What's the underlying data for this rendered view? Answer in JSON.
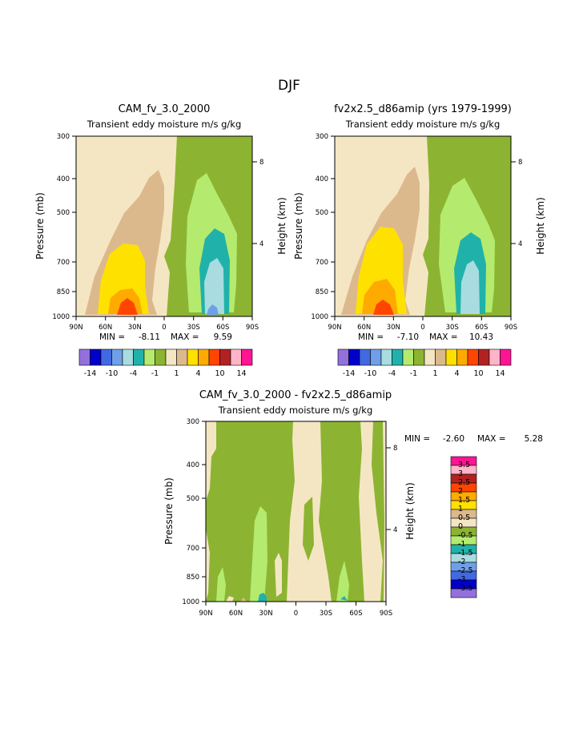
{
  "page_title": "DJF",
  "colors": {
    "levels_main": [
      "#9370DB",
      "#0000CD",
      "#4169E1",
      "#6F9FE8",
      "#A8DCE0",
      "#20B2AA",
      "#B4EB6E",
      "#8CB432",
      "#F5E6C3",
      "#DCB98C",
      "#FFE100",
      "#FFAA00",
      "#FF4500",
      "#B22222",
      "#FFB4C8",
      "#FF1493"
    ],
    "levels_diff": [
      "#9370DB",
      "#0000CD",
      "#4169E1",
      "#6F9FE8",
      "#A8DCE0",
      "#20B2AA",
      "#B4EB6E",
      "#8CB432",
      "#F5E6C3",
      "#DCB98C",
      "#FFE100",
      "#FFAA00",
      "#FF4500",
      "#B22222",
      "#FFB4C8",
      "#FF1493"
    ]
  },
  "chart_data": [
    {
      "type": "contour",
      "id": "left",
      "title": "CAM_fv_3.0_2000",
      "subtitle": "Transient eddy moisture m/s g/kg",
      "xlabel": "",
      "ylabel": "Pressure (mb)",
      "y2label": "Height (km)",
      "x_ticks": [
        "90N",
        "60N",
        "30N",
        "0",
        "30S",
        "60S",
        "90S"
      ],
      "x_range": [
        90,
        -90
      ],
      "y_ticks": [
        "300",
        "400",
        "500",
        "700",
        "850",
        "1000"
      ],
      "y_tick_values": [
        300,
        400,
        500,
        700,
        850,
        1000
      ],
      "y2_ticks": [
        "8",
        "4"
      ],
      "min_label": "MIN =",
      "min_value": "-8.11",
      "max_label": "MAX =",
      "max_value": "9.59",
      "colorbar_labels": [
        "-14",
        "-10",
        "-4",
        "-1",
        "1",
        "4",
        "10",
        "14"
      ]
    },
    {
      "type": "contour",
      "id": "right",
      "title": "fv2x2.5_d86amip (yrs 1979-1999)",
      "subtitle": "Transient eddy moisture m/s g/kg",
      "xlabel": "",
      "ylabel": "Pressure (mb)",
      "y2label": "Height (km)",
      "x_ticks": [
        "90N",
        "60N",
        "30N",
        "0",
        "30S",
        "60S",
        "90S"
      ],
      "x_range": [
        90,
        -90
      ],
      "y_ticks": [
        "300",
        "400",
        "500",
        "700",
        "850",
        "1000"
      ],
      "y_tick_values": [
        300,
        400,
        500,
        700,
        850,
        1000
      ],
      "y2_ticks": [
        "8",
        "4"
      ],
      "min_label": "MIN =",
      "min_value": "-7.10",
      "max_label": "MAX =",
      "max_value": "10.43",
      "colorbar_labels": [
        "-14",
        "-10",
        "-4",
        "-1",
        "1",
        "4",
        "10",
        "14"
      ]
    },
    {
      "type": "contour",
      "id": "diff",
      "title": "CAM_fv_3.0_2000 - fv2x2.5_d86amip",
      "subtitle": "Transient eddy moisture m/s g/kg",
      "xlabel": "",
      "ylabel": "Pressure (mb)",
      "y2label": "Height (km)",
      "x_ticks": [
        "90N",
        "60N",
        "30N",
        "0",
        "30S",
        "60S",
        "90S"
      ],
      "x_range": [
        90,
        -90
      ],
      "y_ticks": [
        "300",
        "400",
        "500",
        "700",
        "850",
        "1000"
      ],
      "y_tick_values": [
        300,
        400,
        500,
        700,
        850,
        1000
      ],
      "y2_ticks": [
        "8",
        "4"
      ],
      "min_label": "MIN =",
      "min_value": "-2.60",
      "max_label": "MAX =",
      "max_value": "5.28",
      "colorbar_labels": [
        "3.5",
        "3",
        "2.5",
        "2",
        "1.5",
        "1",
        "0.5",
        "0",
        "-0.5",
        "-1",
        "-1.5",
        "-2",
        "-2.5",
        "-3",
        "-3.5"
      ]
    }
  ]
}
